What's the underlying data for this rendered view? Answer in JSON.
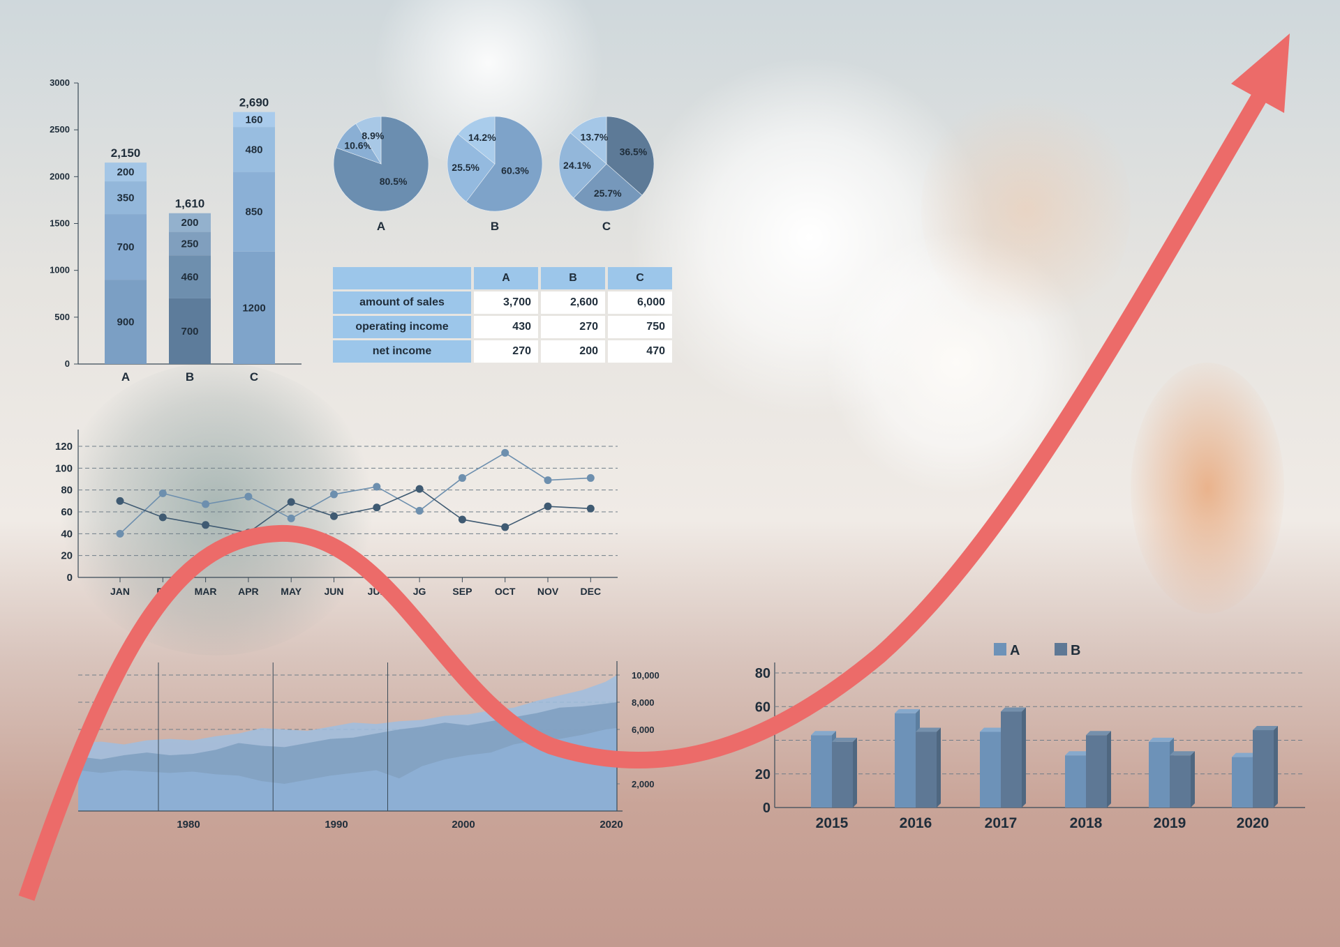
{
  "chart_data": [
    {
      "type": "bar",
      "stacked": true,
      "categories": [
        "A",
        "B",
        "C"
      ],
      "totals_labels": [
        "2,150",
        "1,610",
        "2,690"
      ],
      "segments": [
        {
          "values": [
            900,
            700,
            1200
          ],
          "labels": [
            "900",
            "700",
            "1200"
          ]
        },
        {
          "values": [
            700,
            460,
            850
          ],
          "labels": [
            "700",
            "460",
            "850"
          ]
        },
        {
          "values": [
            350,
            250,
            480
          ],
          "labels": [
            "350",
            "250",
            "480"
          ]
        },
        {
          "values": [
            200,
            200,
            160
          ],
          "labels": [
            "200",
            "200",
            "160"
          ]
        }
      ],
      "ylim": [
        0,
        3000
      ],
      "yticks": [
        "0",
        "500",
        "1000",
        "1500",
        "2000",
        "2500",
        "3000"
      ]
    },
    {
      "type": "pie",
      "pies": [
        {
          "name": "A",
          "values": [
            80.5,
            10.6,
            8.9
          ],
          "labels": [
            "80.5%",
            "10.6%",
            "8.9%"
          ]
        },
        {
          "name": "B",
          "values": [
            60.3,
            25.5,
            14.2
          ],
          "labels": [
            "60.3%",
            "25.5%",
            "14.2%"
          ]
        },
        {
          "name": "C",
          "values": [
            36.5,
            25.7,
            24.1,
            13.7
          ],
          "labels": [
            "36.5%",
            "25.7%",
            "24.1%",
            "13.7%"
          ]
        }
      ]
    },
    {
      "type": "table",
      "columns": [
        "A",
        "B",
        "C"
      ],
      "rows": [
        {
          "label": "amount of sales",
          "values": [
            "3,700",
            "2,600",
            "6,000"
          ]
        },
        {
          "label": "operating income",
          "values": [
            "430",
            "270",
            "750"
          ]
        },
        {
          "label": "net income",
          "values": [
            "270",
            "200",
            "470"
          ]
        }
      ]
    },
    {
      "type": "line",
      "categories": [
        "JAN",
        "FEB",
        "MAR",
        "APR",
        "MAY",
        "JUN",
        "JUL",
        "AUG",
        "SEP",
        "OCT",
        "NOV",
        "DEC"
      ],
      "category_labels": [
        "JAN",
        "FE",
        "MAR",
        "APR",
        "MAY",
        "JUN",
        "JUL",
        "JG",
        "SEP",
        "OCT",
        "NOV",
        "DEC"
      ],
      "series": [
        {
          "values": [
            40,
            77,
            67,
            74,
            54,
            76,
            83,
            61,
            91,
            114,
            89,
            91
          ]
        },
        {
          "values": [
            70,
            55,
            48,
            41,
            69,
            56,
            64,
            81,
            53,
            46,
            65,
            63
          ]
        }
      ],
      "ylim": [
        0,
        120
      ],
      "yticks": [
        "0",
        "20",
        "40",
        "60",
        "80",
        "100",
        "120"
      ],
      "grid": true
    },
    {
      "type": "area",
      "x": [
        1973,
        1975,
        1977,
        1979,
        1981,
        1983,
        1985,
        1987,
        1989,
        1991,
        1993,
        1995,
        1997,
        1999,
        2001,
        2003,
        2005,
        2007,
        2009,
        2011,
        2013,
        2015,
        2017,
        2019,
        2020
      ],
      "series": [
        {
          "values": [
            5000,
            5100,
            4900,
            5200,
            5300,
            5200,
            5500,
            5700,
            6100,
            6000,
            5900,
            6200,
            6500,
            6400,
            6600,
            6700,
            7000,
            7100,
            7400,
            7600,
            8100,
            8500,
            8900,
            9500,
            10000
          ]
        },
        {
          "values": [
            4000,
            3800,
            4100,
            4300,
            4100,
            4200,
            4500,
            5000,
            4800,
            4700,
            5000,
            5300,
            5400,
            5700,
            6000,
            6200,
            6500,
            6300,
            6600,
            6900,
            7200,
            7600,
            7700,
            7900,
            8000
          ]
        },
        {
          "values": [
            3000,
            2800,
            3000,
            2900,
            2800,
            2900,
            2700,
            2600,
            2200,
            2000,
            2300,
            2600,
            2800,
            3000,
            2400,
            3300,
            3800,
            4100,
            4300,
            4900,
            5200,
            5300,
            5600,
            6000,
            6100
          ]
        }
      ],
      "xticks": [
        "1980",
        "1990",
        "2000",
        "2020"
      ],
      "yticks": [
        "2,000",
        "6,000",
        "8,000",
        "10,000"
      ],
      "ylim": [
        0,
        10000
      ]
    },
    {
      "type": "bar",
      "categories": [
        "2015",
        "2016",
        "2017",
        "2018",
        "2019",
        "2020"
      ],
      "series": [
        {
          "name": "A",
          "values": [
            43,
            56,
            45,
            31,
            39,
            30
          ]
        },
        {
          "name": "B",
          "values": [
            39,
            45,
            57,
            43,
            31,
            46
          ]
        }
      ],
      "ylim": [
        0,
        80
      ],
      "yticks": [
        "0",
        "20",
        "60",
        "80"
      ],
      "legend": "top"
    }
  ]
}
